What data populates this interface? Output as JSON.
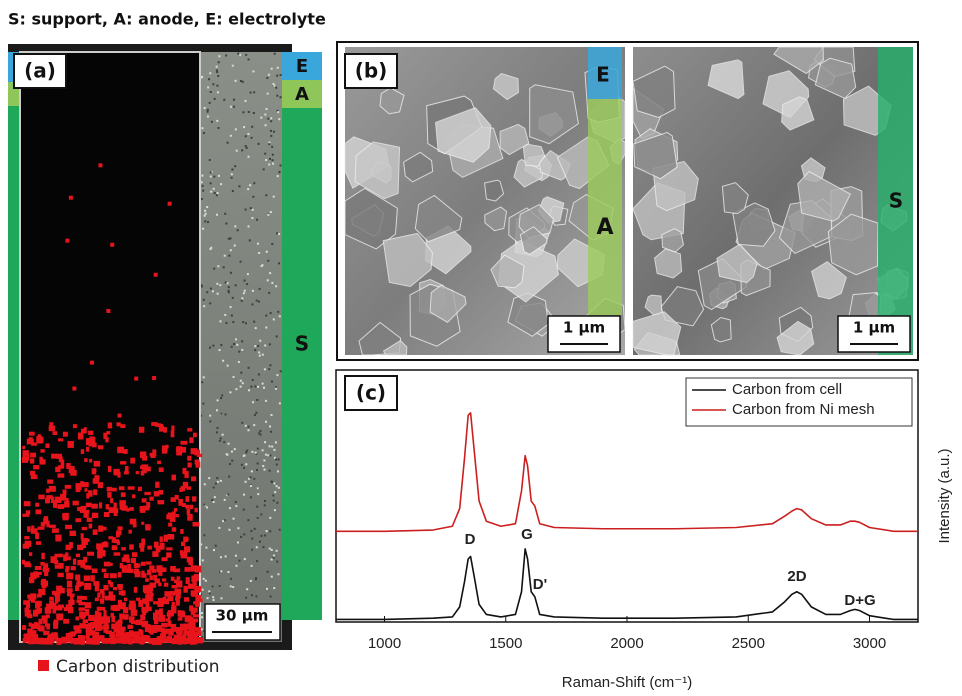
{
  "title": "S: support, A: anode, E: electrolyte",
  "panel_a": {
    "label": "(a)",
    "strips": [
      "E",
      "A",
      "S"
    ],
    "scale_bar": "30 µm",
    "legend": "Carbon distribution"
  },
  "panel_b": {
    "label": "(b)",
    "left_strips": [
      "E",
      "A"
    ],
    "right_strip": "S",
    "scale_bars": [
      "1 µm",
      "1 µm"
    ]
  },
  "chart_data": {
    "type": "line",
    "label": "(c)",
    "x_label": "Raman-Shift (cm⁻¹)",
    "y_label": "Intensity (a.u.)",
    "x": [
      800,
      1000,
      1200,
      1280,
      1310,
      1330,
      1345,
      1355,
      1370,
      1390,
      1420,
      1480,
      1540,
      1565,
      1580,
      1590,
      1605,
      1620,
      1640,
      1700,
      1900,
      2200,
      2450,
      2600,
      2650,
      2680,
      2700,
      2720,
      2760,
      2820,
      2880,
      2920,
      2940,
      2960,
      3000,
      3100,
      3200
    ],
    "series": [
      {
        "name": "Carbon from cell",
        "color": "#111111",
        "values": [
          0.01,
          0.01,
          0.015,
          0.02,
          0.06,
          0.16,
          0.25,
          0.26,
          0.18,
          0.07,
          0.03,
          0.02,
          0.03,
          0.12,
          0.29,
          0.25,
          0.12,
          0.1,
          0.03,
          0.02,
          0.015,
          0.015,
          0.02,
          0.04,
          0.08,
          0.11,
          0.12,
          0.11,
          0.06,
          0.03,
          0.03,
          0.045,
          0.05,
          0.045,
          0.025,
          0.01,
          0.01
        ]
      },
      {
        "name": "Carbon from Ni mesh",
        "color": "#cc1f1f",
        "values": [
          0.36,
          0.36,
          0.365,
          0.38,
          0.45,
          0.65,
          0.82,
          0.83,
          0.68,
          0.48,
          0.4,
          0.38,
          0.39,
          0.52,
          0.66,
          0.62,
          0.48,
          0.46,
          0.39,
          0.375,
          0.37,
          0.37,
          0.375,
          0.39,
          0.42,
          0.44,
          0.45,
          0.445,
          0.41,
          0.385,
          0.385,
          0.4,
          0.4,
          0.395,
          0.375,
          0.36,
          0.36
        ]
      }
    ],
    "annotations": [
      "D",
      "G",
      "D'",
      "2D",
      "D+G"
    ],
    "xlim": [
      800,
      3200
    ],
    "xticks": [
      1000,
      1500,
      2000,
      2500,
      3000
    ],
    "ylim": [
      0,
      1
    ]
  }
}
